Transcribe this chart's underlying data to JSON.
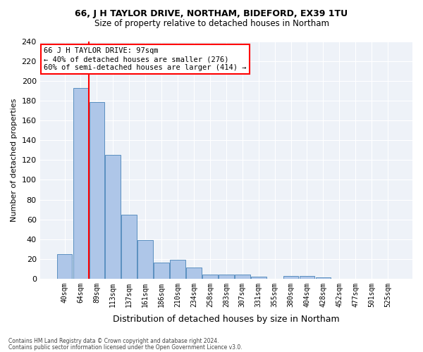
{
  "title1": "66, J H TAYLOR DRIVE, NORTHAM, BIDEFORD, EX39 1TU",
  "title2": "Size of property relative to detached houses in Northam",
  "xlabel": "Distribution of detached houses by size in Northam",
  "ylabel": "Number of detached properties",
  "footnote1": "Contains HM Land Registry data © Crown copyright and database right 2024.",
  "footnote2": "Contains public sector information licensed under the Open Government Licence v3.0.",
  "bins": [
    "40sqm",
    "64sqm",
    "89sqm",
    "113sqm",
    "137sqm",
    "161sqm",
    "186sqm",
    "210sqm",
    "234sqm",
    "258sqm",
    "283sqm",
    "307sqm",
    "331sqm",
    "355sqm",
    "380sqm",
    "404sqm",
    "428sqm",
    "452sqm",
    "477sqm",
    "501sqm",
    "525sqm"
  ],
  "values": [
    25,
    193,
    179,
    125,
    65,
    39,
    16,
    19,
    11,
    4,
    4,
    4,
    2,
    0,
    3,
    3,
    1,
    0,
    0,
    0,
    0
  ],
  "bar_color": "#aec6e8",
  "bar_edge_color": "#5a8fc0",
  "red_line_index": 2,
  "annotation_text": "66 J H TAYLOR DRIVE: 97sqm\n← 40% of detached houses are smaller (276)\n60% of semi-detached houses are larger (414) →",
  "annotation_box_color": "white",
  "annotation_box_edge": "red",
  "background_color": "#eef2f8",
  "ylim": [
    0,
    240
  ],
  "yticks": [
    0,
    20,
    40,
    60,
    80,
    100,
    120,
    140,
    160,
    180,
    200,
    220,
    240
  ]
}
